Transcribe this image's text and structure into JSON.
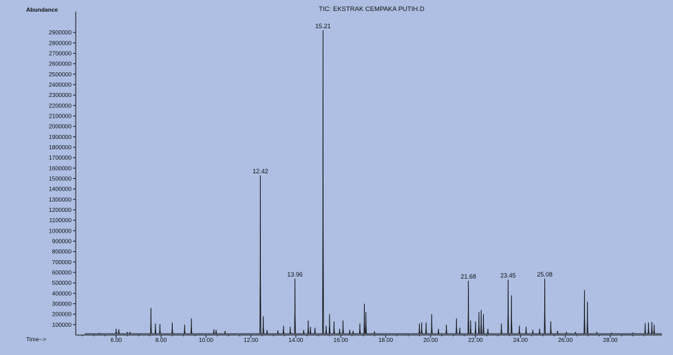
{
  "colors": {
    "background": "#aebfe3",
    "ink": "#111111"
  },
  "chart_data": {
    "type": "line",
    "title": "TIC: EKSTRAK CEMPAKA PUTIH.D",
    "ylabel": "Abundance",
    "xlabel": "Time-->",
    "xlim": [
      4.2,
      30.3
    ],
    "ylim": [
      0,
      3000000
    ],
    "x_ticks": [
      6,
      8,
      10,
      12,
      14,
      16,
      18,
      20,
      22,
      24,
      26,
      28
    ],
    "x_tick_labels": [
      "6.00",
      "8.00",
      "10.00",
      "12.00",
      "14.00",
      "16.00",
      "18.00",
      "20.00",
      "22.00",
      "24.00",
      "26.00",
      "28.00"
    ],
    "y_ticks": [
      100000,
      200000,
      300000,
      400000,
      500000,
      600000,
      700000,
      800000,
      900000,
      1000000,
      1100000,
      1200000,
      1300000,
      1400000,
      1500000,
      1600000,
      1700000,
      1800000,
      1900000,
      2000000,
      2100000,
      2200000,
      2300000,
      2400000,
      2500000,
      2600000,
      2700000,
      2800000,
      2900000
    ],
    "y_tick_labels": [
      "100000",
      "200000",
      "300000",
      "400000",
      "500000",
      "600000",
      "700000",
      "800000",
      "900000",
      "1000000",
      "1100000",
      "1200000",
      "1300000",
      "1400000",
      "1500000",
      "1600000",
      "1700000",
      "1800000",
      "1900000",
      "2000000",
      "2100000",
      "2200000",
      "2300000",
      "2400000",
      "2500000",
      "2600000",
      "2700000",
      "2800000",
      "2900000"
    ],
    "peaks": [
      {
        "rt": 5.25,
        "abundance": 10000
      },
      {
        "rt": 6.0,
        "abundance": 60000
      },
      {
        "rt": 6.12,
        "abundance": 55000
      },
      {
        "rt": 6.5,
        "abundance": 25000
      },
      {
        "rt": 6.62,
        "abundance": 25000
      },
      {
        "rt": 7.55,
        "abundance": 260000
      },
      {
        "rt": 7.75,
        "abundance": 110000
      },
      {
        "rt": 7.95,
        "abundance": 105000
      },
      {
        "rt": 8.5,
        "abundance": 120000
      },
      {
        "rt": 9.05,
        "abundance": 100000
      },
      {
        "rt": 9.35,
        "abundance": 160000
      },
      {
        "rt": 10.35,
        "abundance": 55000
      },
      {
        "rt": 10.45,
        "abundance": 50000
      },
      {
        "rt": 10.85,
        "abundance": 40000
      },
      {
        "rt": 12.42,
        "abundance": 1530000,
        "label": "12.42"
      },
      {
        "rt": 12.55,
        "abundance": 180000
      },
      {
        "rt": 12.72,
        "abundance": 50000
      },
      {
        "rt": 13.2,
        "abundance": 45000
      },
      {
        "rt": 13.45,
        "abundance": 90000
      },
      {
        "rt": 13.75,
        "abundance": 80000
      },
      {
        "rt": 13.96,
        "abundance": 540000,
        "label": "13.96"
      },
      {
        "rt": 14.35,
        "abundance": 50000
      },
      {
        "rt": 14.55,
        "abundance": 140000
      },
      {
        "rt": 14.65,
        "abundance": 80000
      },
      {
        "rt": 14.85,
        "abundance": 70000
      },
      {
        "rt": 15.21,
        "abundance": 2920000,
        "label": "15.21"
      },
      {
        "rt": 15.35,
        "abundance": 90000
      },
      {
        "rt": 15.5,
        "abundance": 200000
      },
      {
        "rt": 15.7,
        "abundance": 130000
      },
      {
        "rt": 15.95,
        "abundance": 60000
      },
      {
        "rt": 16.1,
        "abundance": 140000
      },
      {
        "rt": 16.4,
        "abundance": 50000
      },
      {
        "rt": 16.55,
        "abundance": 40000
      },
      {
        "rt": 16.85,
        "abundance": 110000
      },
      {
        "rt": 17.05,
        "abundance": 300000
      },
      {
        "rt": 17.12,
        "abundance": 220000
      },
      {
        "rt": 17.5,
        "abundance": 35000
      },
      {
        "rt": 19.5,
        "abundance": 110000
      },
      {
        "rt": 19.6,
        "abundance": 120000
      },
      {
        "rt": 19.8,
        "abundance": 120000
      },
      {
        "rt": 20.05,
        "abundance": 200000
      },
      {
        "rt": 20.35,
        "abundance": 60000
      },
      {
        "rt": 20.7,
        "abundance": 100000
      },
      {
        "rt": 21.15,
        "abundance": 160000
      },
      {
        "rt": 21.3,
        "abundance": 70000
      },
      {
        "rt": 21.68,
        "abundance": 520000,
        "label": "21.68"
      },
      {
        "rt": 21.78,
        "abundance": 140000
      },
      {
        "rt": 22.0,
        "abundance": 130000
      },
      {
        "rt": 22.15,
        "abundance": 220000
      },
      {
        "rt": 22.25,
        "abundance": 240000
      },
      {
        "rt": 22.35,
        "abundance": 200000
      },
      {
        "rt": 22.55,
        "abundance": 60000
      },
      {
        "rt": 23.15,
        "abundance": 110000
      },
      {
        "rt": 23.45,
        "abundance": 530000,
        "label": "23.45"
      },
      {
        "rt": 23.6,
        "abundance": 380000
      },
      {
        "rt": 23.95,
        "abundance": 90000
      },
      {
        "rt": 24.25,
        "abundance": 80000
      },
      {
        "rt": 24.55,
        "abundance": 50000
      },
      {
        "rt": 24.85,
        "abundance": 60000
      },
      {
        "rt": 25.08,
        "abundance": 540000,
        "label": "25.08"
      },
      {
        "rt": 25.35,
        "abundance": 130000
      },
      {
        "rt": 25.65,
        "abundance": 40000
      },
      {
        "rt": 26.05,
        "abundance": 30000
      },
      {
        "rt": 26.45,
        "abundance": 30000
      },
      {
        "rt": 26.85,
        "abundance": 430000
      },
      {
        "rt": 26.98,
        "abundance": 320000
      },
      {
        "rt": 27.4,
        "abundance": 30000
      },
      {
        "rt": 28.05,
        "abundance": 20000
      },
      {
        "rt": 29.0,
        "abundance": 20000
      },
      {
        "rt": 29.55,
        "abundance": 115000
      },
      {
        "rt": 29.7,
        "abundance": 120000
      },
      {
        "rt": 29.85,
        "abundance": 125000
      },
      {
        "rt": 29.95,
        "abundance": 100000
      }
    ]
  }
}
